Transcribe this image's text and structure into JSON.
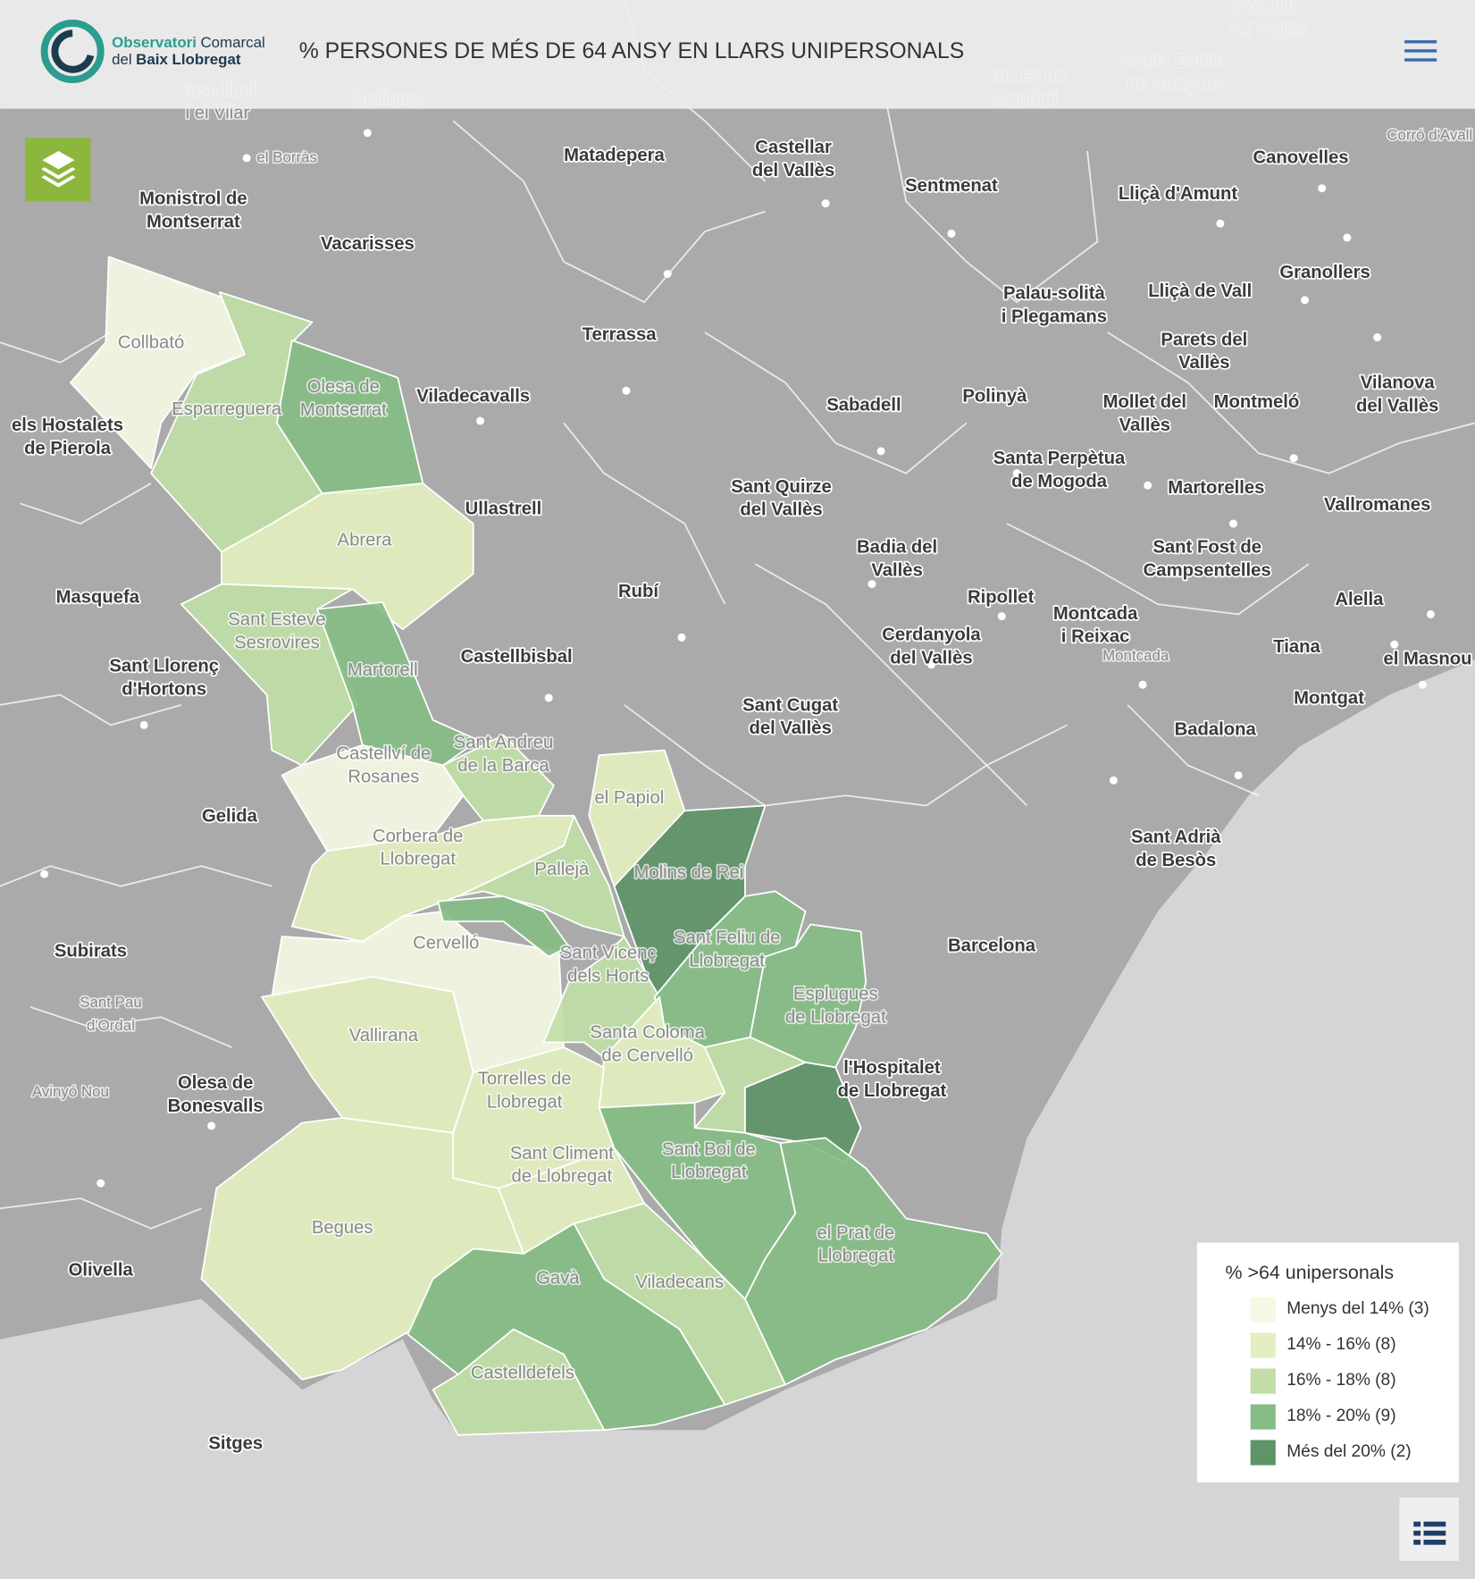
{
  "header": {
    "logo": {
      "name": "Observatori",
      "name2": "Comarcal",
      "line2a": "del",
      "line2b": "Baix Llobregat"
    },
    "title": "% PERSONES DE MÉS DE 64 ANSY EN LLARS UNIPERSONALS"
  },
  "legend": {
    "title": "% >64 unipersonals",
    "items": [
      {
        "label": "Menys del 14% (3)",
        "color": "#f5f9e4"
      },
      {
        "label": "14% - 16% (8)",
        "color": "#e3efc0"
      },
      {
        "label": "16% - 18% (8)",
        "color": "#c0dea6"
      },
      {
        "label": "18% - 20% (9)",
        "color": "#86bd85"
      },
      {
        "label": "Més del 20% (2)",
        "color": "#5e9468"
      }
    ]
  },
  "map": {
    "labels": [
      [
        "Castellbell",
        "i el Vilar"
      ],
      [
        "Rellinars"
      ],
      [
        "Caldes de",
        "Montbui"
      ],
      [
        "Santa Eulàlia",
        "de Ronçana"
      ],
      [
        "l'Ametlla",
        "del Vallès"
      ],
      [
        "el Borràs"
      ],
      [
        "Matadepera"
      ],
      [
        "Castellar",
        "del Vallès"
      ],
      [
        "Sentmenat"
      ],
      [
        "Canovelles"
      ],
      [
        "Corró d'Avall"
      ],
      [
        "Lliçà d'Amunt"
      ],
      [
        "Monistrol de",
        "Montserrat"
      ],
      [
        "Vacarisses"
      ],
      [
        "Granollers"
      ],
      [
        "Palau-solità",
        "i Plegamans"
      ],
      [
        "Lliçà de Vall"
      ],
      [
        "Terrassa"
      ],
      [
        "Collbató"
      ],
      [
        "Parets del",
        "Vallès"
      ],
      [
        "Olesa de",
        "Montserrat"
      ],
      [
        "Viladecavalls"
      ],
      [
        "Sabadell"
      ],
      [
        "Polinyà"
      ],
      [
        "Mollet del",
        "Vallès"
      ],
      [
        "Montmeló"
      ],
      [
        "Vilanova",
        "del Vallès"
      ],
      [
        "Esparreguera"
      ],
      [
        "els Hostalets",
        "de Pierola"
      ],
      [
        "Santa Perpètua",
        "de Mogoda"
      ],
      [
        "Martorelles"
      ],
      [
        "Sant Quirze",
        "del Vallès"
      ],
      [
        "Ullastrell"
      ],
      [
        "Vallromanes"
      ],
      [
        "Abrera"
      ],
      [
        "Badia del",
        "Vallès"
      ],
      [
        "Sant Fost de",
        "Campsentelles"
      ],
      [
        "Rubí"
      ],
      [
        "Masquefa"
      ],
      [
        "Ripollet"
      ],
      [
        "Alella"
      ],
      [
        "Sant Esteve",
        "Sesrovires"
      ],
      [
        "Montcada",
        "i Reixac"
      ],
      [
        "Cerdanyola",
        "del Vallès"
      ],
      [
        "Tiana"
      ],
      [
        "Castellbisbal"
      ],
      [
        "el Masnou"
      ],
      [
        "Montcada"
      ],
      [
        "Sant Llorenç",
        "d'Hortons"
      ],
      [
        "Martorell"
      ],
      [
        "Montgat"
      ],
      [
        "Sant Cugat",
        "del Vallès"
      ],
      [
        "Badalona"
      ],
      [
        "Castellví de",
        "Rosanes"
      ],
      [
        "Sant Andreu",
        "de la Barca"
      ],
      [
        "el Papiol"
      ],
      [
        "Gelida"
      ],
      [
        "Sant Adrià",
        "de Besòs"
      ],
      [
        "Corbera de",
        "Llobregat"
      ],
      [
        "Pallejà"
      ],
      [
        "Molins de Rei"
      ],
      [
        "Sant Feliu de",
        "Llobregat"
      ],
      [
        "Cervelló"
      ],
      [
        "Barcelona"
      ],
      [
        "Subirats"
      ],
      [
        "Sant Vicenç",
        "dels Horts"
      ],
      [
        "Esplugues",
        "de Llobregat"
      ],
      [
        "Sant Pau",
        "d'Ordal"
      ],
      [
        "Vallirana"
      ],
      [
        "Santa Coloma",
        "de Cervelló"
      ],
      [
        "l'Hospitalet",
        "de Llobregat"
      ],
      [
        "Torrelles de",
        "Llobregat"
      ],
      [
        "Olesa de",
        "Bonesvalls"
      ],
      [
        "Avinyó Nou"
      ],
      [
        "Sant Boi de",
        "Llobregat"
      ],
      [
        "Sant Climent",
        "de Llobregat"
      ],
      [
        "Begues"
      ],
      [
        "el Prat de",
        "Llobregat"
      ],
      [
        "Olivella"
      ],
      [
        "Gavà"
      ],
      [
        "Viladecans"
      ],
      [
        "Castelldefels"
      ],
      [
        "Sitges"
      ]
    ]
  }
}
